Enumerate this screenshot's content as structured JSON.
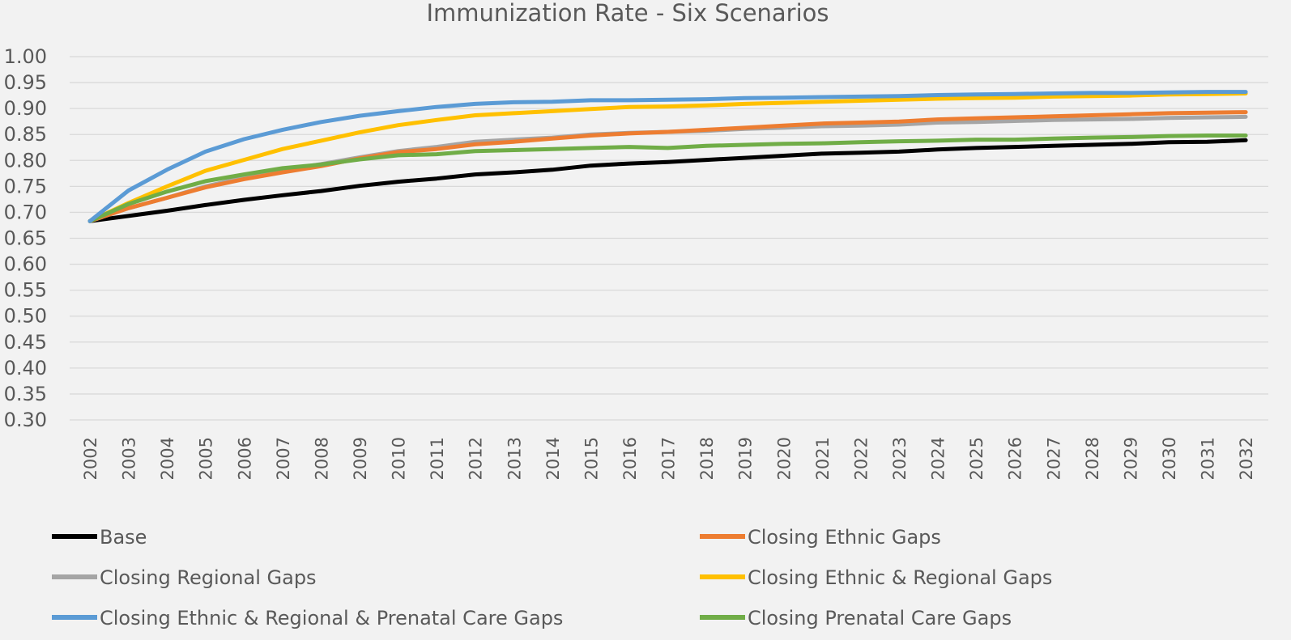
{
  "chart_data": {
    "type": "line",
    "title": "Immunization Rate - Six Scenarios",
    "xlabel": "",
    "ylabel": "",
    "ylim": [
      0.3,
      1.0
    ],
    "y_ticks": [
      "0.30",
      "0.35",
      "0.40",
      "0.45",
      "0.50",
      "0.55",
      "0.60",
      "0.65",
      "0.70",
      "0.75",
      "0.80",
      "0.85",
      "0.90",
      "0.95",
      "1.00"
    ],
    "grid": true,
    "legend_position": "bottom",
    "categories": [
      "2002",
      "2003",
      "2004",
      "2005",
      "2006",
      "2007",
      "2008",
      "2009",
      "2010",
      "2011",
      "2012",
      "2013",
      "2014",
      "2015",
      "2016",
      "2017",
      "2018",
      "2019",
      "2020",
      "2021",
      "2022",
      "2023",
      "2024",
      "2025",
      "2026",
      "2027",
      "2028",
      "2029",
      "2030",
      "2031",
      "2032"
    ],
    "series": [
      {
        "name": "Base",
        "color": "#000000",
        "values": [
          0.683,
          0.693,
          0.703,
          0.714,
          0.724,
          0.733,
          0.741,
          0.751,
          0.759,
          0.765,
          0.773,
          0.777,
          0.782,
          0.79,
          0.794,
          0.797,
          0.801,
          0.805,
          0.809,
          0.813,
          0.815,
          0.817,
          0.821,
          0.824,
          0.826,
          0.828,
          0.83,
          0.832,
          0.835,
          0.836,
          0.839
        ]
      },
      {
        "name": "Closing Ethnic Gaps",
        "color": "#ed7d31",
        "values": [
          0.683,
          0.708,
          0.728,
          0.748,
          0.764,
          0.777,
          0.789,
          0.804,
          0.816,
          0.822,
          0.831,
          0.836,
          0.842,
          0.848,
          0.852,
          0.855,
          0.859,
          0.863,
          0.867,
          0.871,
          0.873,
          0.875,
          0.879,
          0.881,
          0.883,
          0.885,
          0.887,
          0.889,
          0.891,
          0.892,
          0.893
        ]
      },
      {
        "name": "Closing Regional Gaps",
        "color": "#a5a5a5",
        "values": [
          0.683,
          0.708,
          0.728,
          0.75,
          0.767,
          0.781,
          0.793,
          0.806,
          0.818,
          0.826,
          0.836,
          0.84,
          0.844,
          0.85,
          0.853,
          0.855,
          0.857,
          0.861,
          0.863,
          0.866,
          0.867,
          0.869,
          0.873,
          0.874,
          0.876,
          0.878,
          0.879,
          0.88,
          0.882,
          0.883,
          0.884
        ]
      },
      {
        "name": "Closing Ethnic & Regional Gaps",
        "color": "#ffc000",
        "values": [
          0.683,
          0.718,
          0.75,
          0.78,
          0.801,
          0.822,
          0.838,
          0.854,
          0.868,
          0.878,
          0.887,
          0.891,
          0.895,
          0.899,
          0.903,
          0.904,
          0.906,
          0.909,
          0.911,
          0.913,
          0.915,
          0.917,
          0.919,
          0.92,
          0.921,
          0.923,
          0.924,
          0.925,
          0.927,
          0.928,
          0.929
        ]
      },
      {
        "name": "Closing Ethnic & Regional & Prenatal Care Gaps",
        "color": "#5b9bd5",
        "values": [
          0.683,
          0.742,
          0.782,
          0.817,
          0.841,
          0.859,
          0.874,
          0.886,
          0.895,
          0.903,
          0.909,
          0.912,
          0.913,
          0.916,
          0.916,
          0.917,
          0.918,
          0.92,
          0.921,
          0.922,
          0.923,
          0.924,
          0.926,
          0.927,
          0.928,
          0.929,
          0.93,
          0.93,
          0.931,
          0.932,
          0.932
        ]
      },
      {
        "name": "Closing Prenatal Care Gaps",
        "color": "#70ad47",
        "values": [
          0.683,
          0.716,
          0.74,
          0.76,
          0.773,
          0.785,
          0.792,
          0.802,
          0.81,
          0.812,
          0.818,
          0.82,
          0.822,
          0.824,
          0.826,
          0.824,
          0.828,
          0.83,
          0.832,
          0.833,
          0.835,
          0.837,
          0.838,
          0.84,
          0.84,
          0.842,
          0.844,
          0.845,
          0.847,
          0.848,
          0.848
        ]
      }
    ]
  }
}
